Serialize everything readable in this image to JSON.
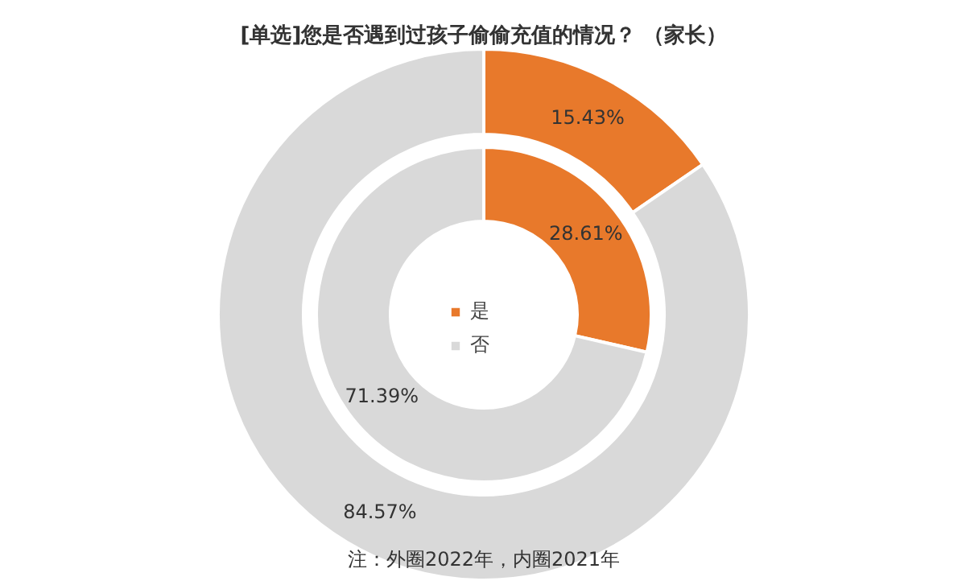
{
  "chart_data": {
    "type": "donut",
    "title": "[单选]您是否遇到过孩子偷偷充值的情况？ （家长）",
    "categories": [
      "是",
      "否"
    ],
    "series": [
      {
        "values": [
          15.43,
          84.57
        ],
        "value_labels": [
          "15.43%",
          "84.57%"
        ],
        "colors": [
          "#e8792b",
          "#d9d9d9"
        ]
      },
      {
        "values": [
          28.61,
          71.39
        ],
        "value_labels": [
          "28.61%",
          "71.39%"
        ],
        "colors": [
          "#e8792b",
          "#d9d9d9"
        ]
      }
    ],
    "legend": "center",
    "annotations": [
      "注：外圈2022年，内圈2021年"
    ]
  }
}
